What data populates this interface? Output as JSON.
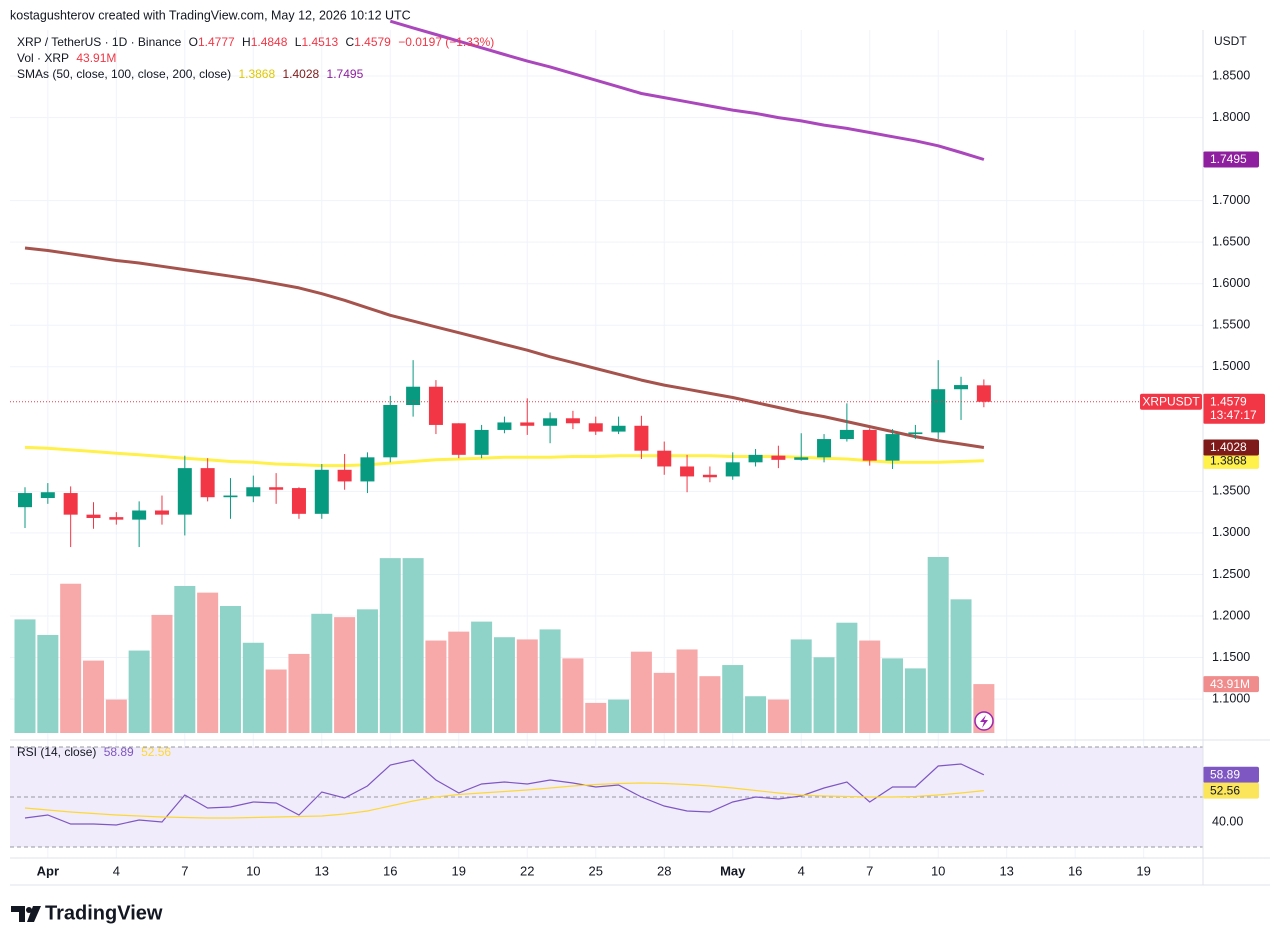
{
  "header": {
    "credit": "kostagushterov created with TradingView.com, May 12, 2026 10:12 UTC"
  },
  "brand": {
    "logo": "TradingView"
  },
  "chart_data": {
    "type": "candlestick",
    "symbol_title": "XRP / TetherUS · 1D · Binance",
    "ohlc_letters": [
      "O",
      "H",
      "L",
      "C"
    ],
    "change_label": "−0.0197 (−1.33%)",
    "ticker": "XRPUSDT",
    "countdown": "13:47:17",
    "currency": "USDT",
    "up_color": "#089981",
    "down_color": "#f23645",
    "categories": [
      null,
      "Apr",
      null,
      null,
      "4",
      null,
      null,
      "7",
      null,
      null,
      "10",
      null,
      null,
      "13",
      null,
      null,
      "16",
      null,
      null,
      "19",
      null,
      null,
      "22",
      null,
      null,
      "25",
      null,
      null,
      "28",
      null,
      null,
      "May",
      null,
      null,
      "4",
      null,
      null,
      "7",
      null,
      null,
      "10",
      null,
      null,
      "13",
      null,
      null,
      "16",
      null,
      null,
      "19",
      null,
      null
    ],
    "open": [
      1.331,
      1.342,
      1.348,
      1.322,
      1.319,
      1.316,
      1.327,
      1.322,
      1.378,
      1.343,
      1.344,
      1.355,
      1.354,
      1.323,
      1.376,
      1.362,
      1.391,
      1.454,
      1.476,
      1.432,
      1.394,
      1.424,
      1.433,
      1.429,
      1.438,
      1.432,
      1.422,
      1.429,
      1.399,
      1.38,
      1.37,
      1.368,
      1.385,
      1.393,
      1.388,
      1.391,
      1.413,
      1.424,
      1.387,
      1.419,
      1.421,
      1.473,
      1.4777,
      null,
      null,
      null,
      null,
      null,
      null,
      null,
      null,
      null
    ],
    "high": [
      1.355,
      1.36,
      1.356,
      1.337,
      1.325,
      1.338,
      1.345,
      1.393,
      1.39,
      1.366,
      1.369,
      1.372,
      1.355,
      1.383,
      1.395,
      1.397,
      1.465,
      1.508,
      1.484,
      1.432,
      1.43,
      1.44,
      1.462,
      1.445,
      1.447,
      1.44,
      1.44,
      1.441,
      1.41,
      1.394,
      1.38,
      1.397,
      1.401,
      1.405,
      1.42,
      1.419,
      1.456,
      1.426,
      1.425,
      1.43,
      1.508,
      1.488,
      1.4848,
      null,
      null,
      null,
      null,
      null,
      null,
      null,
      null,
      null
    ],
    "low": [
      1.306,
      1.335,
      1.283,
      1.305,
      1.31,
      1.283,
      1.31,
      1.297,
      1.338,
      1.317,
      1.337,
      1.335,
      1.317,
      1.317,
      1.352,
      1.348,
      1.385,
      1.44,
      1.419,
      1.39,
      1.39,
      1.42,
      1.418,
      1.408,
      1.425,
      1.418,
      1.419,
      1.389,
      1.37,
      1.349,
      1.361,
      1.364,
      1.38,
      1.378,
      1.387,
      1.385,
      1.41,
      1.381,
      1.377,
      1.413,
      1.413,
      1.436,
      1.4513,
      null,
      null,
      null,
      null,
      null,
      null,
      null,
      null,
      null
    ],
    "close": [
      1.348,
      1.349,
      1.322,
      1.318,
      1.316,
      1.327,
      1.322,
      1.378,
      1.343,
      1.345,
      1.355,
      1.352,
      1.323,
      1.376,
      1.362,
      1.391,
      1.454,
      1.476,
      1.43,
      1.394,
      1.424,
      1.433,
      1.429,
      1.438,
      1.432,
      1.422,
      1.429,
      1.399,
      1.38,
      1.368,
      1.367,
      1.385,
      1.394,
      1.388,
      1.391,
      1.413,
      1.424,
      1.387,
      1.419,
      1.421,
      1.473,
      1.478,
      1.4579,
      null,
      null,
      null,
      null,
      null,
      null,
      null,
      null,
      null
    ],
    "ylim": [
      1.05,
      1.92
    ],
    "yticks": [
      {
        "value": 1.85,
        "label": "1.8500"
      },
      {
        "value": 1.8,
        "label": "1.8000"
      },
      {
        "value": 1.7,
        "label": "1.7000"
      },
      {
        "value": 1.65,
        "label": "1.6500"
      },
      {
        "value": 1.6,
        "label": "1.6000"
      },
      {
        "value": 1.55,
        "label": "1.5500"
      },
      {
        "value": 1.5,
        "label": "1.5000"
      },
      {
        "value": 1.35,
        "label": "1.3500"
      },
      {
        "value": 1.3,
        "label": "1.3000"
      },
      {
        "value": 1.25,
        "label": "1.2500"
      },
      {
        "value": 1.2,
        "label": "1.2000"
      },
      {
        "value": 1.15,
        "label": "1.1500"
      },
      {
        "value": 1.1,
        "label": "1.1000"
      }
    ],
    "grid": true,
    "sma_title": "SMAs (50, close, 100, close, 200, close)",
    "series": [
      {
        "color": "#fff04a",
        "tag_text": "#131722",
        "values": [
          1.403,
          1.402,
          1.4,
          1.398,
          1.396,
          1.394,
          1.392,
          1.39,
          1.388,
          1.386,
          1.385,
          1.383,
          1.382,
          1.381,
          1.381,
          1.382,
          1.384,
          1.386,
          1.388,
          1.389,
          1.39,
          1.391,
          1.391,
          1.391,
          1.392,
          1.392,
          1.393,
          1.393,
          1.393,
          1.393,
          1.393,
          1.392,
          1.392,
          1.392,
          1.391,
          1.39,
          1.389,
          1.387,
          1.385,
          1.385,
          1.385,
          1.386,
          1.3868,
          null,
          null,
          null,
          null,
          null,
          null,
          null,
          null,
          null
        ]
      },
      {
        "color": "#a5534c",
        "tag_color": "#7f1a1a",
        "tag_text": "#ffffff",
        "values": [
          1.643,
          1.64,
          1.636,
          1.632,
          1.628,
          1.625,
          1.621,
          1.617,
          1.613,
          1.609,
          1.605,
          1.6,
          1.595,
          1.588,
          1.58,
          1.571,
          1.562,
          1.555,
          1.548,
          1.541,
          1.534,
          1.527,
          1.52,
          1.512,
          1.505,
          1.498,
          1.491,
          1.484,
          1.478,
          1.473,
          1.468,
          1.463,
          1.457,
          1.451,
          1.445,
          1.44,
          1.434,
          1.428,
          1.422,
          1.416,
          1.411,
          1.407,
          1.4028,
          null,
          null,
          null,
          null,
          null,
          null,
          null,
          null,
          null
        ]
      },
      {
        "color": "#ab47bc",
        "tag_color": "#8e1f9e",
        "tag_text": "#ffffff",
        "values": [
          null,
          null,
          null,
          null,
          null,
          null,
          null,
          null,
          null,
          null,
          null,
          null,
          null,
          null,
          null,
          null,
          1.916,
          1.908,
          1.9,
          1.892,
          1.884,
          1.876,
          1.868,
          1.861,
          1.853,
          1.845,
          1.837,
          1.829,
          1.824,
          1.819,
          1.814,
          1.809,
          1.805,
          1.8,
          1.796,
          1.791,
          1.787,
          1.782,
          1.777,
          1.772,
          1.766,
          1.758,
          1.7495,
          null,
          null,
          null,
          null,
          null,
          null,
          null,
          null,
          null
        ]
      }
    ],
    "volume": {
      "title": "Vol · XRP",
      "up_color": "#8fd3c8",
      "down_color": "#f7a8a8",
      "values": [
        102,
        88,
        134,
        65,
        30,
        74,
        106,
        132,
        126,
        114,
        81,
        57,
        71,
        107,
        104,
        111,
        157,
        157,
        83,
        91,
        100,
        86,
        84,
        93,
        67,
        27,
        30,
        73,
        54,
        75,
        51,
        61,
        33,
        30,
        84,
        68,
        99,
        83,
        67,
        58,
        158,
        120,
        43.91,
        null,
        null,
        null,
        null,
        null,
        null,
        null,
        null,
        null
      ],
      "value_labels": [
        null,
        null,
        null,
        null,
        null,
        null,
        null,
        null,
        null,
        null,
        null,
        null,
        null,
        null,
        null,
        null,
        null,
        null,
        null,
        null,
        null,
        null,
        null,
        null,
        null,
        null,
        null,
        null,
        null,
        null,
        null,
        null,
        null,
        null,
        null,
        null,
        null,
        null,
        null,
        null,
        null,
        null,
        "43.91M",
        null,
        null,
        null,
        null,
        null,
        null,
        null,
        null,
        null
      ]
    },
    "rsi": {
      "type": "line",
      "title": "RSI (14, close)",
      "ylim": [
        25,
        75
      ],
      "yticks": [
        {
          "value": 40,
          "label": "40.00"
        }
      ],
      "band": [
        30,
        70
      ],
      "midline": 50,
      "band_color": "#f1ecfb",
      "series": [
        {
          "color": "#7e57c2",
          "values": [
            41.6,
            42.8,
            39.2,
            39.2,
            38.8,
            40.8,
            40,
            50.8,
            45.6,
            46,
            48,
            47.6,
            42.8,
            52,
            49.6,
            54.4,
            62.8,
            64.8,
            56.8,
            51.6,
            55.2,
            56,
            55.2,
            56.8,
            55.6,
            54,
            54.8,
            50,
            46.4,
            44.4,
            44,
            48,
            50,
            49.2,
            50.4,
            53.6,
            56,
            48,
            54,
            54,
            62.4,
            63.2,
            58.89,
            null,
            null,
            null,
            null,
            null,
            null,
            null,
            null,
            null
          ]
        },
        {
          "color": "#fdd835",
          "values": [
            45.6,
            44.8,
            44,
            43.4,
            42.8,
            42.4,
            42,
            41.8,
            41.6,
            41.6,
            41.8,
            42,
            42.2,
            42.4,
            43.2,
            44.4,
            46.4,
            48.4,
            50,
            51,
            51.6,
            52.2,
            52.8,
            53.6,
            54.4,
            55,
            55.4,
            55.6,
            55.4,
            55,
            54.4,
            53.6,
            52.6,
            51.6,
            50.8,
            50.4,
            50.2,
            50,
            50,
            50.2,
            50.8,
            51.6,
            52.56,
            null,
            null,
            null,
            null,
            null,
            null,
            null,
            null,
            null
          ]
        }
      ]
    }
  }
}
